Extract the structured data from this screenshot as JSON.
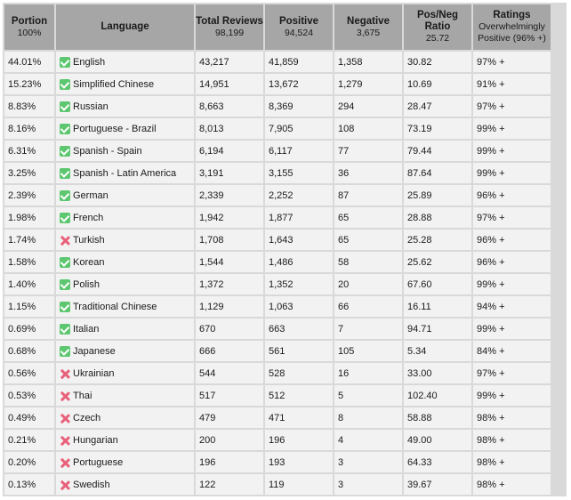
{
  "headers": {
    "portion": {
      "title": "Portion",
      "sub": "100%"
    },
    "language": {
      "title": "Language"
    },
    "total": {
      "title": "Total Reviews",
      "sub": "98,199"
    },
    "positive": {
      "title": "Positive",
      "sub": "94,524"
    },
    "negative": {
      "title": "Negative",
      "sub": "3,675"
    },
    "ratio": {
      "title": "Pos/Neg Ratio",
      "sub": "25.72"
    },
    "ratings": {
      "title": "Ratings",
      "sub": "Overwhelmingly Positive (96% +)"
    }
  },
  "rows": [
    {
      "portion": "44.01%",
      "language": "English",
      "icon": "check-icon",
      "total": "43,217",
      "positive": "41,859",
      "negative": "1,358",
      "ratio": "30.82",
      "rating": "97% +"
    },
    {
      "portion": "15.23%",
      "language": "Simplified Chinese",
      "icon": "check-icon",
      "total": "14,951",
      "positive": "13,672",
      "negative": "1,279",
      "ratio": "10.69",
      "rating": "91% +"
    },
    {
      "portion": "8.83%",
      "language": "Russian",
      "icon": "check-icon",
      "total": "8,663",
      "positive": "8,369",
      "negative": "294",
      "ratio": "28.47",
      "rating": "97% +"
    },
    {
      "portion": "8.16%",
      "language": "Portuguese - Brazil",
      "icon": "check-icon",
      "total": "8,013",
      "positive": "7,905",
      "negative": "108",
      "ratio": "73.19",
      "rating": "99% +"
    },
    {
      "portion": "6.31%",
      "language": "Spanish - Spain",
      "icon": "check-icon",
      "total": "6,194",
      "positive": "6,117",
      "negative": "77",
      "ratio": "79.44",
      "rating": "99% +"
    },
    {
      "portion": "3.25%",
      "language": "Spanish - Latin America",
      "icon": "check-icon",
      "total": "3,191",
      "positive": "3,155",
      "negative": "36",
      "ratio": "87.64",
      "rating": "99% +"
    },
    {
      "portion": "2.39%",
      "language": "German",
      "icon": "check-icon",
      "total": "2,339",
      "positive": "2,252",
      "negative": "87",
      "ratio": "25.89",
      "rating": "96% +"
    },
    {
      "portion": "1.98%",
      "language": "French",
      "icon": "check-icon",
      "total": "1,942",
      "positive": "1,877",
      "negative": "65",
      "ratio": "28.88",
      "rating": "97% +"
    },
    {
      "portion": "1.74%",
      "language": "Turkish",
      "icon": "cross-icon",
      "total": "1,708",
      "positive": "1,643",
      "negative": "65",
      "ratio": "25.28",
      "rating": "96% +"
    },
    {
      "portion": "1.58%",
      "language": "Korean",
      "icon": "check-icon",
      "total": "1,544",
      "positive": "1,486",
      "negative": "58",
      "ratio": "25.62",
      "rating": "96% +"
    },
    {
      "portion": "1.40%",
      "language": "Polish",
      "icon": "check-icon",
      "total": "1,372",
      "positive": "1,352",
      "negative": "20",
      "ratio": "67.60",
      "rating": "99% +"
    },
    {
      "portion": "1.15%",
      "language": "Traditional Chinese",
      "icon": "check-icon",
      "total": "1,129",
      "positive": "1,063",
      "negative": "66",
      "ratio": "16.11",
      "rating": "94% +"
    },
    {
      "portion": "0.69%",
      "language": "Italian",
      "icon": "check-icon",
      "total": "670",
      "positive": "663",
      "negative": "7",
      "ratio": "94.71",
      "rating": "99% +"
    },
    {
      "portion": "0.68%",
      "language": "Japanese",
      "icon": "check-icon",
      "total": "666",
      "positive": "561",
      "negative": "105",
      "ratio": "5.34",
      "rating": "84% +"
    },
    {
      "portion": "0.56%",
      "language": "Ukrainian",
      "icon": "cross-icon",
      "total": "544",
      "positive": "528",
      "negative": "16",
      "ratio": "33.00",
      "rating": "97% +"
    },
    {
      "portion": "0.53%",
      "language": "Thai",
      "icon": "cross-icon",
      "total": "517",
      "positive": "512",
      "negative": "5",
      "ratio": "102.40",
      "rating": "99% +"
    },
    {
      "portion": "0.49%",
      "language": "Czech",
      "icon": "cross-icon",
      "total": "479",
      "positive": "471",
      "negative": "8",
      "ratio": "58.88",
      "rating": "98% +"
    },
    {
      "portion": "0.21%",
      "language": "Hungarian",
      "icon": "cross-icon",
      "total": "200",
      "positive": "196",
      "negative": "4",
      "ratio": "49.00",
      "rating": "98% +"
    },
    {
      "portion": "0.20%",
      "language": "Portuguese",
      "icon": "cross-icon",
      "total": "196",
      "positive": "193",
      "negative": "3",
      "ratio": "64.33",
      "rating": "98% +"
    },
    {
      "portion": "0.13%",
      "language": "Swedish",
      "icon": "cross-icon",
      "total": "122",
      "positive": "119",
      "negative": "3",
      "ratio": "39.67",
      "rating": "98% +"
    }
  ],
  "colors": {
    "header_bg": "#a6a6a6",
    "cell_bg": "#f2f2f2",
    "grid": "#d9d9d9",
    "check": "#5cc76f",
    "cross": "#e8607a"
  }
}
